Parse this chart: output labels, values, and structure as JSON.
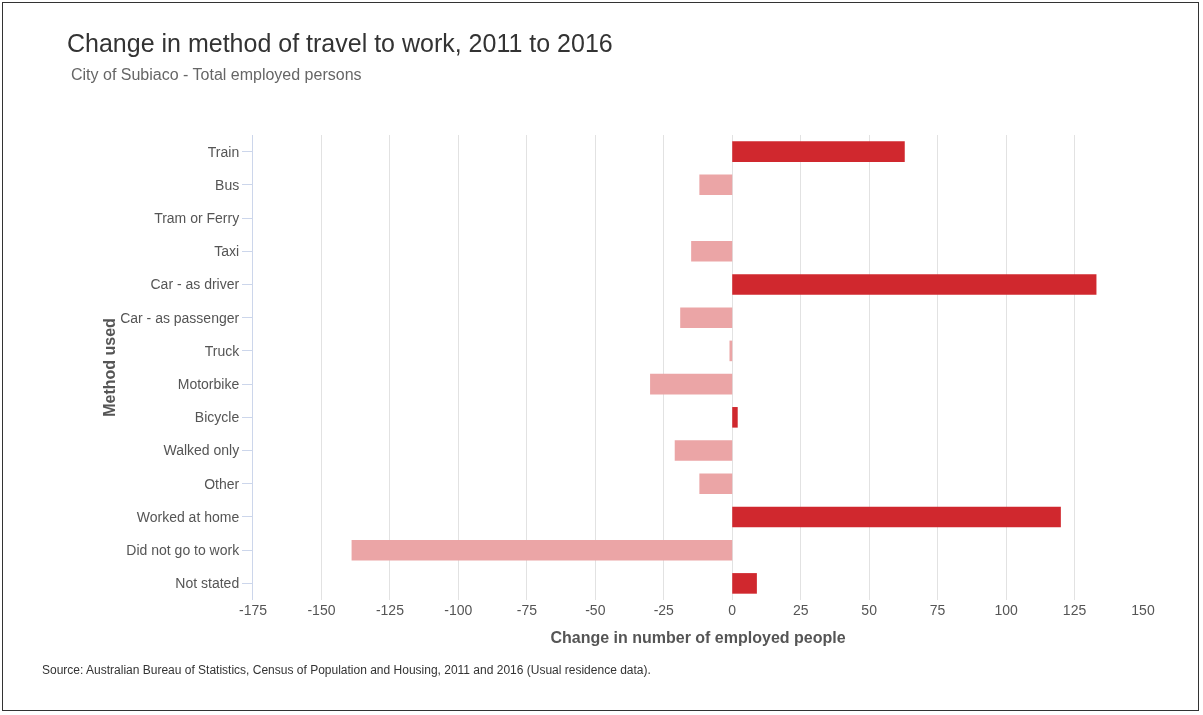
{
  "chart_data": {
    "type": "bar",
    "orientation": "horizontal",
    "title": "Change in method of travel to work, 2011 to 2016",
    "subtitle": "City of Subiaco - Total employed persons",
    "xlabel": "Change in number of employed people",
    "ylabel": "Method used",
    "categories": [
      "Train",
      "Bus",
      "Tram or Ferry",
      "Taxi",
      "Car - as driver",
      "Car - as passenger",
      "Truck",
      "Motorbike",
      "Bicycle",
      "Walked only",
      "Other",
      "Worked at home",
      "Did not go to work",
      "Not stated"
    ],
    "values": [
      63,
      -12,
      0,
      -15,
      133,
      -19,
      -1,
      -30,
      2,
      -21,
      -12,
      120,
      -139,
      9
    ],
    "colors": [
      "#d0282e",
      "#eba5a6",
      "#eba5a6",
      "#eba5a6",
      "#d0282e",
      "#eba5a6",
      "#eba5a6",
      "#eba5a6",
      "#d0282e",
      "#eba5a6",
      "#eba5a6",
      "#d0282e",
      "#eba5a6",
      "#d0282e"
    ],
    "xlim": [
      -175,
      150
    ],
    "xticks": [
      -175,
      -150,
      -125,
      -100,
      -75,
      -50,
      -25,
      0,
      25,
      50,
      75,
      100,
      125,
      150
    ],
    "grid": "x",
    "annotations": [
      "Source: Australian Bureau of Statistics, Census of Population and Housing, 2011 and 2016 (Usual residence data)."
    ]
  }
}
